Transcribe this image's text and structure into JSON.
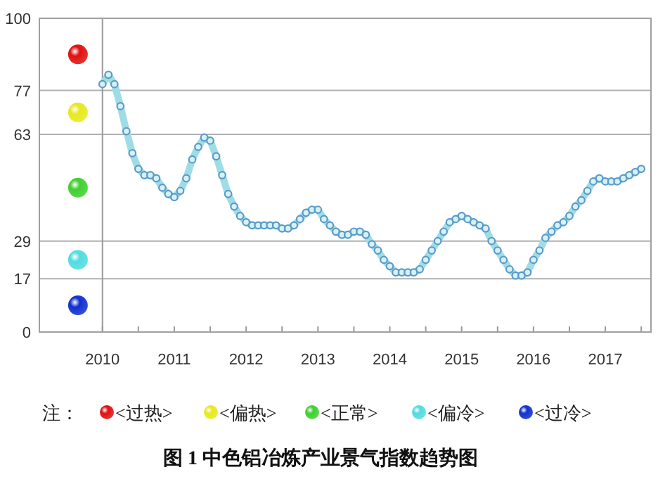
{
  "chart_data": {
    "type": "line",
    "title": "图 1 中色铝冶炼产业景气指数趋势图",
    "annotations": [
      "注：",
      "<过热>",
      "<偏热>",
      "<正常>",
      "<偏冷>",
      "<过冷>"
    ],
    "grid": "y",
    "marker": "circle",
    "line_style": "solid",
    "x": [
      "2010-01",
      "2010-02",
      "2010-03",
      "2010-04",
      "2010-05",
      "2010-06",
      "2010-07",
      "2010-08",
      "2010-09",
      "2010-10",
      "2010-11",
      "2010-12",
      "2011-01",
      "2011-02",
      "2011-03",
      "2011-04",
      "2011-05",
      "2011-06",
      "2011-07",
      "2011-08",
      "2011-09",
      "2011-10",
      "2011-11",
      "2011-12",
      "2012-01",
      "2012-02",
      "2012-03",
      "2012-04",
      "2012-05",
      "2012-06",
      "2012-07",
      "2012-08",
      "2012-09",
      "2012-10",
      "2012-11",
      "2012-12",
      "2013-01",
      "2013-02",
      "2013-03",
      "2013-04",
      "2013-05",
      "2013-06",
      "2013-07",
      "2013-08",
      "2013-09",
      "2013-10",
      "2013-11",
      "2013-12",
      "2014-01",
      "2014-02",
      "2014-03",
      "2014-04",
      "2014-05",
      "2014-06",
      "2014-07",
      "2014-08",
      "2014-09",
      "2014-10",
      "2014-11",
      "2014-12",
      "2015-01",
      "2015-02",
      "2015-03",
      "2015-04",
      "2015-05",
      "2015-06",
      "2015-07",
      "2015-08",
      "2015-09",
      "2015-10",
      "2015-11",
      "2015-12",
      "2016-01",
      "2016-02",
      "2016-03",
      "2016-04",
      "2016-05",
      "2016-06",
      "2016-07",
      "2016-08",
      "2016-09",
      "2016-10",
      "2016-11",
      "2016-12",
      "2017-01",
      "2017-02",
      "2017-03",
      "2017-04",
      "2017-05",
      "2017-06",
      "2017-07"
    ],
    "series": [
      {
        "color": "#9fdde6",
        "values": [
          79,
          82,
          79,
          72,
          64,
          57,
          52,
          50,
          50,
          49,
          46,
          44,
          43,
          45,
          49,
          55,
          59,
          62,
          61,
          56,
          50,
          44,
          40,
          37,
          35,
          34,
          34,
          34,
          34,
          34,
          33,
          33,
          34,
          36,
          38,
          39,
          39,
          36,
          34,
          32,
          31,
          31,
          32,
          32,
          31,
          28,
          26,
          23,
          21,
          19,
          19,
          19,
          19,
          20,
          23,
          26,
          29,
          32,
          35,
          36,
          37,
          36,
          35,
          34,
          33,
          29,
          26,
          23,
          20,
          18,
          18,
          19,
          23,
          26,
          30,
          32,
          34,
          35,
          37,
          40,
          42,
          45,
          48,
          49,
          48,
          48,
          48,
          49,
          50,
          51,
          52
        ]
      }
    ],
    "xlim": [
      "2009-02-15",
      "2017-08-20"
    ],
    "xticks": [
      {
        "value": "2010-01-01",
        "label": "2010"
      },
      {
        "value": "2010-07-01",
        "label": null
      },
      {
        "value": "2011-01-01",
        "label": "2011"
      },
      {
        "value": "2011-07-01",
        "label": null
      },
      {
        "value": "2012-01-01",
        "label": "2012"
      },
      {
        "value": "2012-07-01",
        "label": null
      },
      {
        "value": "2013-01-01",
        "label": "2013"
      },
      {
        "value": "2013-07-01",
        "label": null
      },
      {
        "value": "2014-01-01",
        "label": "2014"
      },
      {
        "value": "2014-07-01",
        "label": null
      },
      {
        "value": "2015-01-01",
        "label": "2015"
      },
      {
        "value": "2015-07-01",
        "label": null
      },
      {
        "value": "2016-01-01",
        "label": "2016"
      },
      {
        "value": "2016-07-01",
        "label": null
      },
      {
        "value": "2017-01-01",
        "label": "2017"
      },
      {
        "value": "2017-07-01",
        "label": null
      }
    ],
    "ylim": [
      0,
      100
    ],
    "yticks": [
      0,
      17,
      29,
      63,
      77,
      100
    ],
    "ref_lines": [
      {
        "axis": "x",
        "value": "2010-01-01",
        "color": "#999999"
      }
    ]
  }
}
